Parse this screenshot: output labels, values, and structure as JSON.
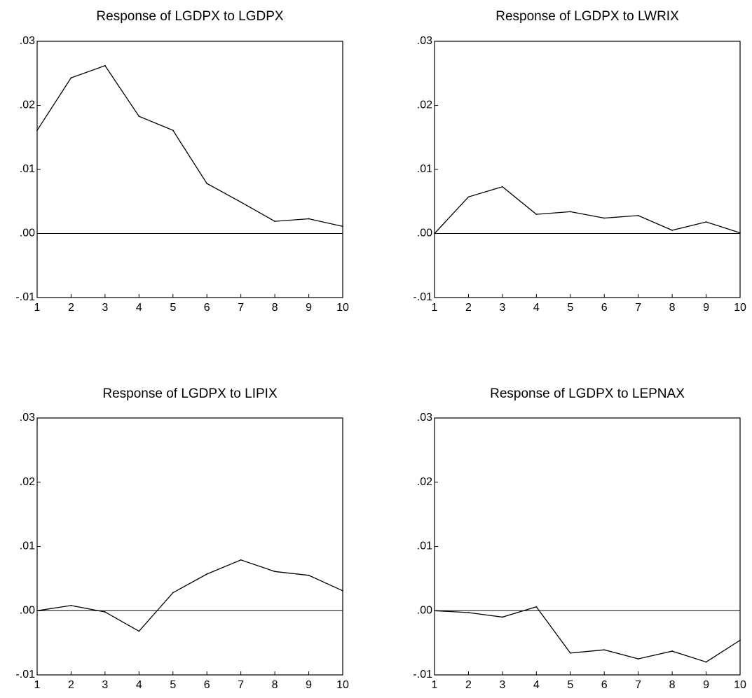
{
  "chart_data": [
    {
      "type": "line",
      "title": "Response of LGDPX to LGDPX",
      "x": [
        1,
        2,
        3,
        4,
        5,
        6,
        7,
        8,
        9,
        10
      ],
      "x_tick_labels": [
        "1",
        "2",
        "3",
        "4",
        "5",
        "6",
        "7",
        "8",
        "9",
        "10"
      ],
      "y_tick_labels": [
        ".03",
        ".02",
        ".01",
        ".00",
        "-.01"
      ],
      "ylim": [
        -0.01,
        0.03
      ],
      "zero_line": true,
      "grid": false,
      "series": [
        {
          "values": [
            0.0161,
            0.0243,
            0.0262,
            0.0183,
            0.0161,
            0.0078,
            0.0049,
            0.0019,
            0.0023,
            0.0011
          ]
        }
      ]
    },
    {
      "type": "line",
      "title": "Response of LGDPX to LWRIX",
      "x": [
        1,
        2,
        3,
        4,
        5,
        6,
        7,
        8,
        9,
        10
      ],
      "x_tick_labels": [
        "1",
        "2",
        "3",
        "4",
        "5",
        "6",
        "7",
        "8",
        "9",
        "10"
      ],
      "y_tick_labels": [
        ".03",
        ".02",
        ".01",
        ".00",
        "-.01"
      ],
      "ylim": [
        -0.01,
        0.03
      ],
      "zero_line": true,
      "grid": false,
      "series": [
        {
          "values": [
            0.0,
            0.0057,
            0.0073,
            0.003,
            0.0034,
            0.0024,
            0.0028,
            0.0005,
            0.0018,
            0.0001
          ]
        }
      ]
    },
    {
      "type": "line",
      "title": "Response of LGDPX to LIPIX",
      "x": [
        1,
        2,
        3,
        4,
        5,
        6,
        7,
        8,
        9,
        10
      ],
      "x_tick_labels": [
        "1",
        "2",
        "3",
        "4",
        "5",
        "6",
        "7",
        "8",
        "9",
        "10"
      ],
      "y_tick_labels": [
        ".03",
        ".02",
        ".01",
        ".00",
        "-.01"
      ],
      "ylim": [
        -0.01,
        0.03
      ],
      "zero_line": true,
      "grid": false,
      "series": [
        {
          "values": [
            0.0,
            0.0008,
            -0.0002,
            -0.0032,
            0.0028,
            0.0057,
            0.0079,
            0.0061,
            0.0055,
            0.0031
          ]
        }
      ]
    },
    {
      "type": "line",
      "title": "Response of LGDPX to LEPNAX",
      "x": [
        1,
        2,
        3,
        4,
        5,
        6,
        7,
        8,
        9,
        10
      ],
      "x_tick_labels": [
        "1",
        "2",
        "3",
        "4",
        "5",
        "6",
        "7",
        "8",
        "9",
        "10"
      ],
      "y_tick_labels": [
        ".03",
        ".02",
        ".01",
        ".00",
        "-.01"
      ],
      "ylim": [
        -0.01,
        0.03
      ],
      "zero_line": true,
      "grid": false,
      "series": [
        {
          "values": [
            0.0,
            -0.0003,
            -0.001,
            0.0006,
            -0.0066,
            -0.0061,
            -0.0075,
            -0.0063,
            -0.008,
            -0.0046
          ]
        }
      ]
    }
  ]
}
